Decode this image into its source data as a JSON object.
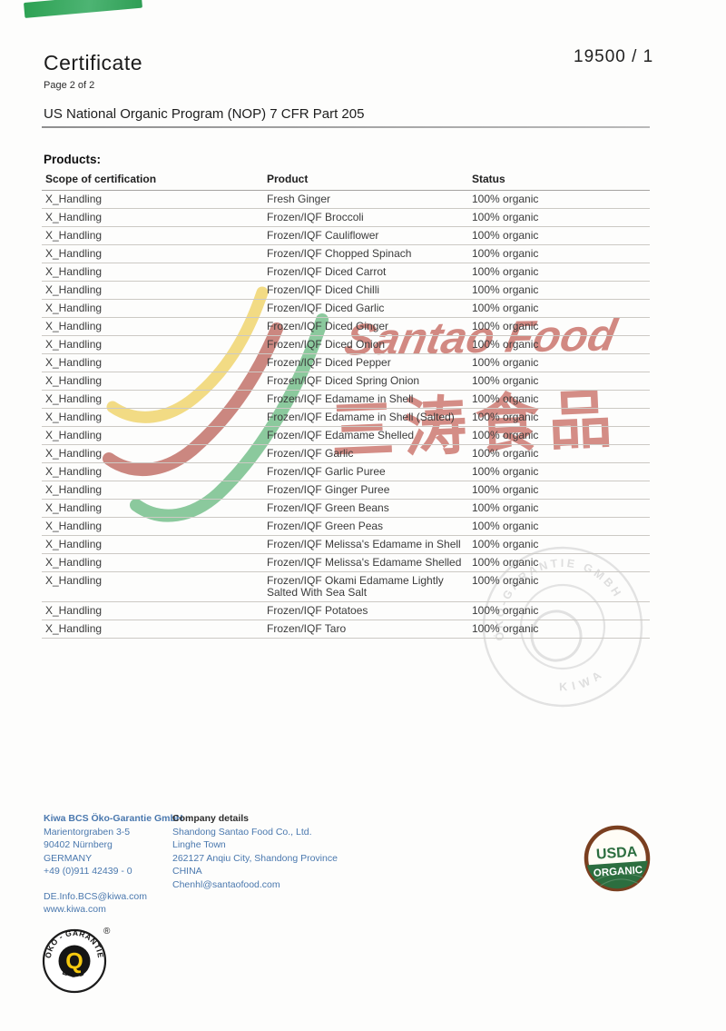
{
  "header": {
    "title": "Certificate",
    "page_note": "Page 2 of 2",
    "certificate_number": "19500 / 1",
    "program_line": "US National Organic Program (NOP) 7 CFR Part 205"
  },
  "products": {
    "heading": "Products:",
    "columns": [
      "Scope of certification",
      "Product",
      "Status"
    ],
    "rows": [
      {
        "scope": "X_Handling",
        "product": "Fresh Ginger",
        "status": "100% organic"
      },
      {
        "scope": "X_Handling",
        "product": "Frozen/IQF Broccoli",
        "status": "100% organic"
      },
      {
        "scope": "X_Handling",
        "product": "Frozen/IQF Cauliflower",
        "status": "100% organic"
      },
      {
        "scope": "X_Handling",
        "product": "Frozen/IQF Chopped Spinach",
        "status": "100% organic"
      },
      {
        "scope": "X_Handling",
        "product": "Frozen/IQF Diced Carrot",
        "status": "100% organic"
      },
      {
        "scope": "X_Handling",
        "product": "Frozen/IQF Diced Chilli",
        "status": "100% organic"
      },
      {
        "scope": "X_Handling",
        "product": "Frozen/IQF Diced Garlic",
        "status": "100% organic"
      },
      {
        "scope": "X_Handling",
        "product": "Frozen/IQF Diced Ginger",
        "status": "100% organic"
      },
      {
        "scope": "X_Handling",
        "product": "Frozen/IQF Diced Onion",
        "status": "100% organic"
      },
      {
        "scope": "X_Handling",
        "product": "Frozen/IQF Diced Pepper",
        "status": "100% organic"
      },
      {
        "scope": "X_Handling",
        "product": "Frozen/IQF Diced Spring Onion",
        "status": "100% organic"
      },
      {
        "scope": "X_Handling",
        "product": "Frozen/IQF Edamame in Shell",
        "status": "100% organic"
      },
      {
        "scope": "X_Handling",
        "product": "Frozen/IQF Edamame in Shell (Salted)",
        "status": "100% organic"
      },
      {
        "scope": "X_Handling",
        "product": "Frozen/IQF Edamame Shelled",
        "status": "100% organic"
      },
      {
        "scope": "X_Handling",
        "product": "Frozen/IQF Garlic",
        "status": "100% organic"
      },
      {
        "scope": "X_Handling",
        "product": "Frozen/IQF Garlic Puree",
        "status": "100% organic"
      },
      {
        "scope": "X_Handling",
        "product": "Frozen/IQF Ginger Puree",
        "status": "100% organic"
      },
      {
        "scope": "X_Handling",
        "product": "Frozen/IQF Green Beans",
        "status": "100% organic"
      },
      {
        "scope": "X_Handling",
        "product": "Frozen/IQF Green Peas",
        "status": "100% organic"
      },
      {
        "scope": "X_Handling",
        "product": "Frozen/IQF Melissa's Edamame in Shell",
        "status": "100% organic"
      },
      {
        "scope": "X_Handling",
        "product": "Frozen/IQF Melissa's Edamame Shelled",
        "status": "100% organic"
      },
      {
        "scope": "X_Handling",
        "product": "Frozen/IQF Okami Edamame Lightly Salted With Sea Salt",
        "status": "100% organic"
      },
      {
        "scope": "X_Handling",
        "product": "Frozen/IQF Potatoes",
        "status": "100% organic"
      },
      {
        "scope": "X_Handling",
        "product": "Frozen/IQF Taro",
        "status": "100% organic"
      }
    ]
  },
  "watermark": {
    "brand_en": "Santao Food",
    "brand_cn": "三涛食品",
    "color": "#cd7a72",
    "ribbons": {
      "yellow": "#f1d878",
      "red": "#c67b73",
      "green": "#7fc493"
    }
  },
  "stamp": {
    "ring_text_top": "ÖKO-GARANTIE GMBH",
    "ring_text_bottom": "KIWA"
  },
  "footer": {
    "certifier": {
      "name": "Kiwa BCS Öko-Garantie GmbH",
      "address_lines": [
        "Marientorgraben 3-5",
        "90402 Nürnberg",
        "GERMANY",
        "+49 (0)911 42439 - 0"
      ],
      "contact_lines": [
        "DE.Info.BCS@kiwa.com",
        "www.kiwa.com"
      ]
    },
    "company": {
      "heading": "Company details",
      "lines": [
        "Shandong Santao Food Co., Ltd.",
        "Linghe Town",
        "262127 Anqiu City, Shandong Province",
        "CHINA",
        "Chenhl@santaofood.com"
      ]
    }
  },
  "logos": {
    "usda": {
      "top": "USDA",
      "bottom": "ORGANIC",
      "ring_color": "#7a3f20",
      "green": "#2c6e3f"
    },
    "bcs": {
      "arc": "ÖKO - GARANTIE",
      "bottom": "BCS",
      "center": "Q",
      "reg": "®",
      "yellow": "#f5c90f"
    }
  }
}
